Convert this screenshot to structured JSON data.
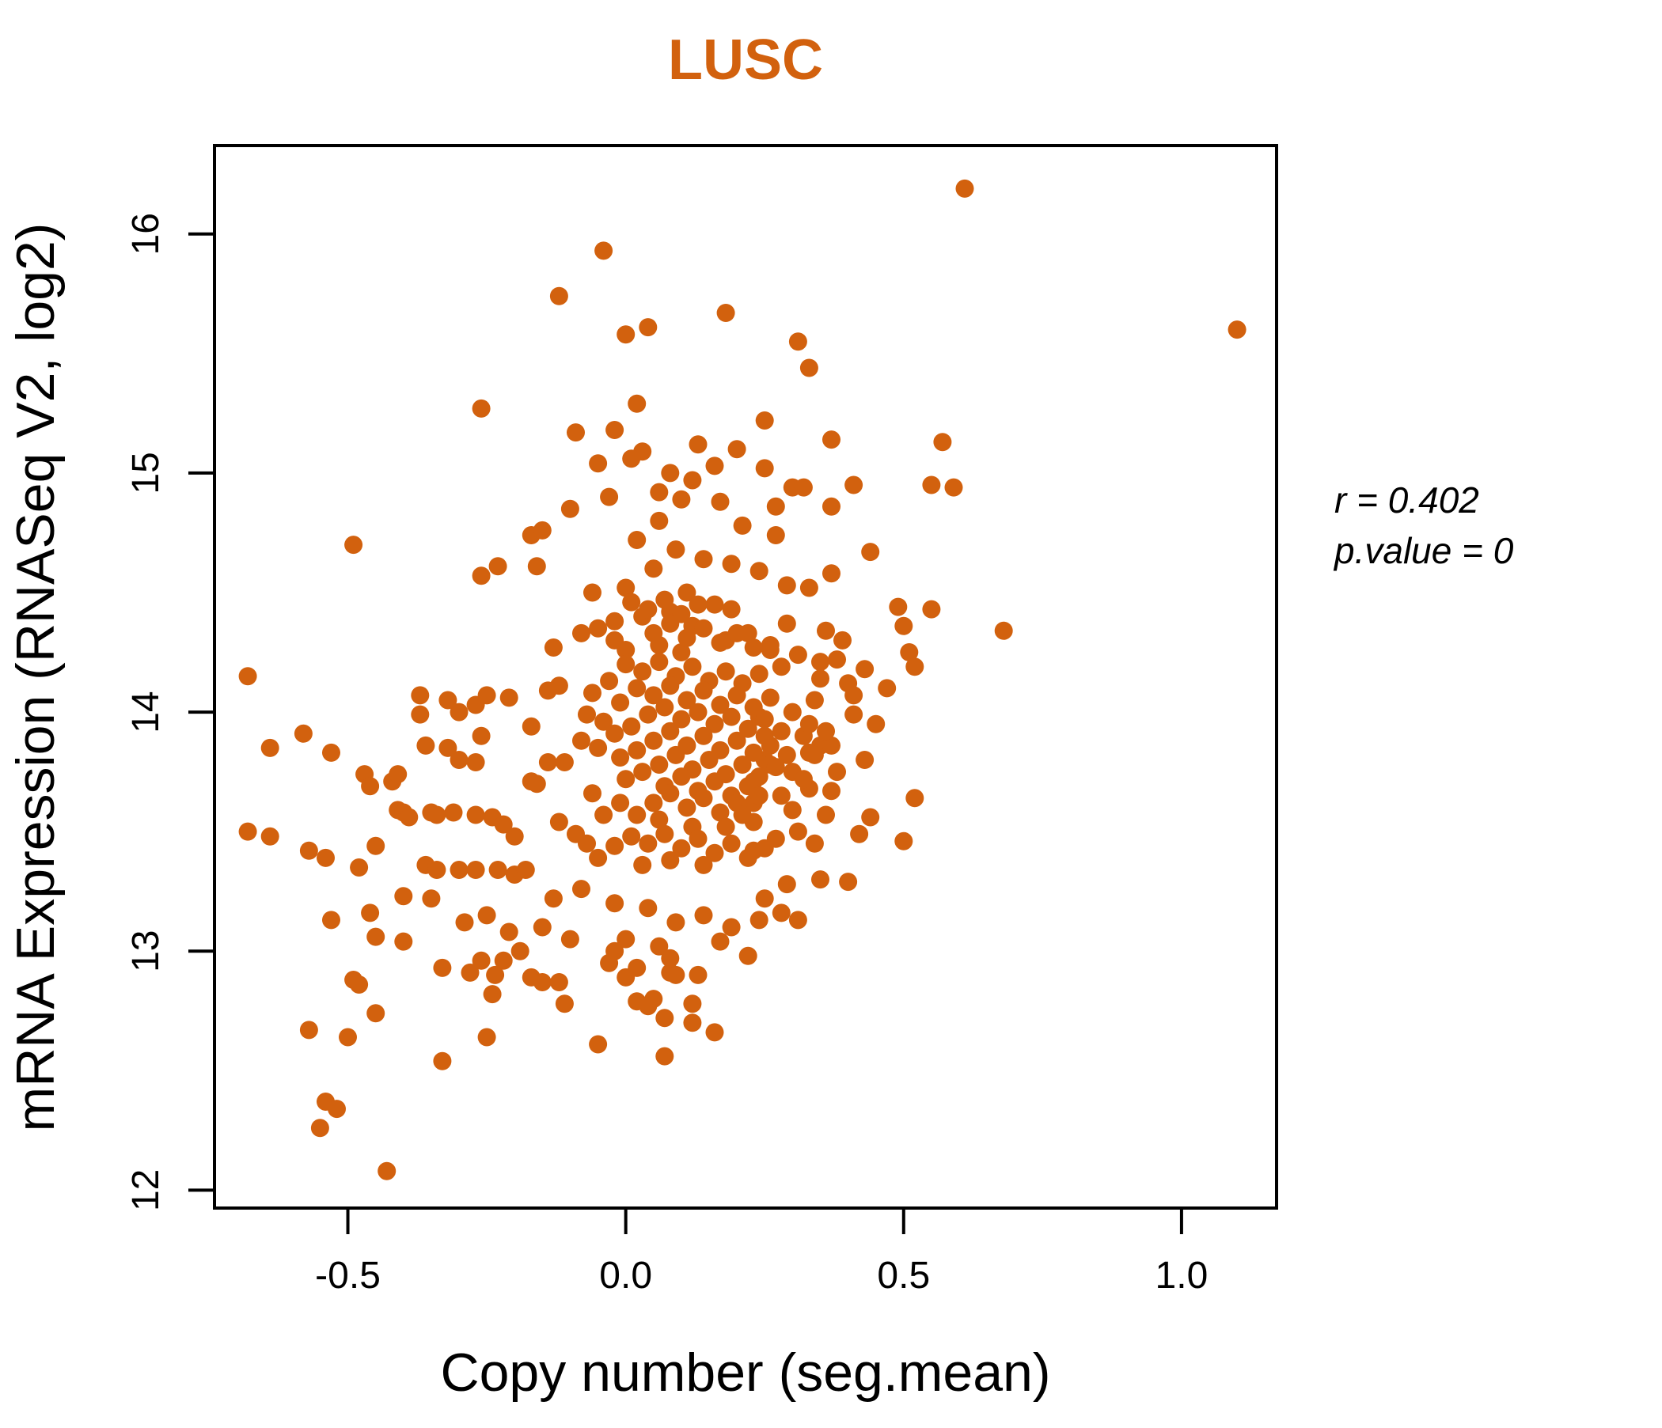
{
  "figure": {
    "title": "LUSC",
    "x_axis": {
      "label": "Copy number (seg.mean)",
      "tick_labels": [
        "-0.5",
        "0.0",
        "0.5",
        "1.0"
      ],
      "tick_values": [
        -0.5,
        0.0,
        0.5,
        1.0
      ]
    },
    "y_axis": {
      "label": "mRNA Expression (RNASeq V2, log2)",
      "tick_labels": [
        "12",
        "13",
        "14",
        "15",
        "16"
      ],
      "tick_values": [
        12,
        13,
        14,
        15,
        16
      ]
    },
    "annotation": {
      "r_text": "r = 0.402",
      "p_text": "p.value = 0"
    },
    "colors": {
      "accent": "#D2610E",
      "axis": "#000000",
      "background": "#ffffff"
    }
  },
  "chart_data": {
    "type": "scatter",
    "title": "LUSC",
    "xlabel": "Copy number (seg.mean)",
    "ylabel": "mRNA Expression (RNASeq V2, log2)",
    "xlim": [
      -0.74,
      1.171
    ],
    "ylim": [
      11.925,
      16.37
    ],
    "x_ticks": [
      -0.5,
      0.0,
      0.5,
      1.0
    ],
    "y_ticks": [
      12,
      13,
      14,
      15,
      16
    ],
    "grid": false,
    "legend": "none",
    "point_color": "#D2610E",
    "point_radius_px": 11.5,
    "stats": {
      "r": 0.402,
      "p_value": 0
    },
    "points": [
      [
        0.61,
        16.19
      ],
      [
        -0.04,
        15.93
      ],
      [
        -0.12,
        15.74
      ],
      [
        0.18,
        15.67
      ],
      [
        0.04,
        15.61
      ],
      [
        0.0,
        15.58
      ],
      [
        1.1,
        15.6
      ],
      [
        0.31,
        15.55
      ],
      [
        0.33,
        15.44
      ],
      [
        -0.26,
        15.27
      ],
      [
        0.02,
        15.29
      ],
      [
        -0.02,
        15.18
      ],
      [
        -0.09,
        15.17
      ],
      [
        0.37,
        15.14
      ],
      [
        0.57,
        15.13
      ],
      [
        0.13,
        15.12
      ],
      [
        0.2,
        15.1
      ],
      [
        0.03,
        15.09
      ],
      [
        0.01,
        15.06
      ],
      [
        -0.05,
        15.04
      ],
      [
        0.25,
        15.22
      ],
      [
        0.16,
        15.03
      ],
      [
        0.08,
        15.0
      ],
      [
        0.25,
        15.02
      ],
      [
        0.12,
        14.97
      ],
      [
        0.3,
        14.94
      ],
      [
        0.32,
        14.94
      ],
      [
        0.41,
        14.95
      ],
      [
        0.55,
        14.95
      ],
      [
        0.59,
        14.94
      ],
      [
        0.06,
        14.92
      ],
      [
        -0.03,
        14.9
      ],
      [
        0.1,
        14.89
      ],
      [
        0.17,
        14.88
      ],
      [
        0.27,
        14.86
      ],
      [
        0.37,
        14.86
      ],
      [
        -0.1,
        14.85
      ],
      [
        -0.49,
        14.7
      ],
      [
        -0.17,
        14.74
      ],
      [
        -0.15,
        14.76
      ],
      [
        -0.26,
        14.57
      ],
      [
        -0.23,
        14.61
      ],
      [
        -0.16,
        14.61
      ],
      [
        0.27,
        14.74
      ],
      [
        0.21,
        14.78
      ],
      [
        0.06,
        14.8
      ],
      [
        0.02,
        14.72
      ],
      [
        0.09,
        14.68
      ],
      [
        0.44,
        14.67
      ],
      [
        0.14,
        14.64
      ],
      [
        0.19,
        14.62
      ],
      [
        0.05,
        14.6
      ],
      [
        0.24,
        14.59
      ],
      [
        0.37,
        14.58
      ],
      [
        0.29,
        14.53
      ],
      [
        0.0,
        14.52
      ],
      [
        -0.06,
        14.5
      ],
      [
        0.11,
        14.5
      ],
      [
        0.33,
        14.52
      ],
      [
        0.49,
        14.44
      ],
      [
        0.5,
        14.36
      ],
      [
        0.51,
        14.25
      ],
      [
        0.68,
        14.34
      ],
      [
        0.36,
        14.34
      ],
      [
        0.29,
        14.37
      ],
      [
        0.39,
        14.3
      ],
      [
        0.16,
        14.45
      ],
      [
        0.08,
        14.42
      ],
      [
        0.03,
        14.4
      ],
      [
        -0.02,
        14.38
      ],
      [
        0.12,
        14.36
      ],
      [
        0.22,
        14.33
      ],
      [
        0.18,
        14.3
      ],
      [
        0.06,
        14.28
      ],
      [
        0.0,
        14.26
      ],
      [
        0.1,
        14.25
      ],
      [
        0.26,
        14.28
      ],
      [
        0.31,
        14.24
      ],
      [
        -0.08,
        14.33
      ],
      [
        -0.13,
        14.27
      ],
      [
        0.47,
        14.1
      ],
      [
        0.52,
        14.19
      ],
      [
        0.26,
        14.26
      ],
      [
        0.28,
        14.19
      ],
      [
        0.35,
        14.21
      ],
      [
        0.35,
        14.14
      ],
      [
        0.01,
        14.46
      ],
      [
        0.04,
        14.43
      ],
      [
        0.07,
        14.47
      ],
      [
        0.1,
        14.41
      ],
      [
        0.13,
        14.45
      ],
      [
        0.19,
        14.43
      ],
      [
        0.05,
        14.33
      ],
      [
        0.08,
        14.37
      ],
      [
        0.11,
        14.31
      ],
      [
        0.14,
        14.35
      ],
      [
        0.17,
        14.29
      ],
      [
        0.2,
        14.33
      ],
      [
        0.23,
        14.27
      ],
      [
        -0.02,
        14.3
      ],
      [
        -0.05,
        14.35
      ],
      [
        -0.68,
        14.15
      ],
      [
        -0.37,
        14.07
      ],
      [
        -0.37,
        13.99
      ],
      [
        -0.32,
        14.05
      ],
      [
        -0.3,
        14.0
      ],
      [
        -0.27,
        14.03
      ],
      [
        -0.25,
        14.07
      ],
      [
        -0.21,
        14.06
      ],
      [
        -0.14,
        14.09
      ],
      [
        -0.12,
        14.11
      ],
      [
        0.4,
        14.12
      ],
      [
        0.41,
        14.07
      ],
      [
        0.34,
        14.05
      ],
      [
        0.41,
        13.99
      ],
      [
        0.24,
        13.98
      ],
      [
        -0.64,
        13.85
      ],
      [
        -0.58,
        13.91
      ],
      [
        -0.53,
        13.83
      ],
      [
        -0.36,
        13.86
      ],
      [
        -0.32,
        13.85
      ],
      [
        -0.3,
        13.8
      ],
      [
        -0.27,
        13.79
      ],
      [
        -0.26,
        13.9
      ],
      [
        -0.17,
        13.94
      ],
      [
        -0.14,
        13.79
      ],
      [
        -0.11,
        13.79
      ],
      [
        0.32,
        13.9
      ],
      [
        0.35,
        13.86
      ],
      [
        0.37,
        13.86
      ],
      [
        0.33,
        13.83
      ],
      [
        0.34,
        13.82
      ],
      [
        0.25,
        13.9
      ],
      [
        0.26,
        13.86
      ],
      [
        0.25,
        13.8
      ],
      [
        0.26,
        13.78
      ],
      [
        -0.68,
        13.5
      ],
      [
        -0.64,
        13.48
      ],
      [
        -0.57,
        13.42
      ],
      [
        -0.54,
        13.39
      ],
      [
        -0.48,
        13.35
      ],
      [
        -0.47,
        13.74
      ],
      [
        -0.46,
        13.69
      ],
      [
        -0.42,
        13.71
      ],
      [
        -0.41,
        13.74
      ],
      [
        -0.41,
        13.59
      ],
      [
        -0.45,
        13.44
      ],
      [
        -0.4,
        13.58
      ],
      [
        -0.39,
        13.56
      ],
      [
        -0.35,
        13.58
      ],
      [
        -0.34,
        13.57
      ],
      [
        -0.31,
        13.58
      ],
      [
        -0.27,
        13.57
      ],
      [
        -0.24,
        13.56
      ],
      [
        -0.22,
        13.53
      ],
      [
        -0.2,
        13.48
      ],
      [
        -0.12,
        13.54
      ],
      [
        -0.09,
        13.49
      ],
      [
        -0.07,
        13.45
      ],
      [
        -0.36,
        13.36
      ],
      [
        -0.34,
        13.34
      ],
      [
        -0.3,
        13.34
      ],
      [
        -0.27,
        13.34
      ],
      [
        -0.23,
        13.34
      ],
      [
        -0.2,
        13.32
      ],
      [
        -0.18,
        13.34
      ],
      [
        -0.17,
        13.71
      ],
      [
        -0.16,
        13.7
      ],
      [
        0.5,
        13.46
      ],
      [
        0.44,
        13.56
      ],
      [
        0.42,
        13.49
      ],
      [
        0.4,
        13.29
      ],
      [
        0.33,
        13.68
      ],
      [
        0.37,
        13.67
      ],
      [
        0.3,
        13.59
      ],
      [
        0.23,
        13.71
      ],
      [
        0.23,
        13.62
      ],
      [
        0.23,
        13.54
      ],
      [
        0.23,
        13.42
      ],
      [
        0.52,
        13.64
      ],
      [
        -0.46,
        13.16
      ],
      [
        -0.53,
        13.13
      ],
      [
        -0.4,
        13.23
      ],
      [
        -0.4,
        13.04
      ],
      [
        -0.49,
        12.88
      ],
      [
        -0.45,
        13.06
      ],
      [
        -0.29,
        13.12
      ],
      [
        -0.25,
        13.15
      ],
      [
        -0.21,
        13.08
      ],
      [
        -0.15,
        13.1
      ],
      [
        -0.1,
        13.05
      ],
      [
        -0.33,
        12.93
      ],
      [
        -0.28,
        12.91
      ],
      [
        -0.22,
        12.96
      ],
      [
        -0.17,
        12.89
      ],
      [
        -0.35,
        13.22
      ],
      [
        -0.13,
        13.22
      ],
      [
        -0.08,
        13.26
      ],
      [
        -0.02,
        13.2
      ],
      [
        0.04,
        13.18
      ],
      [
        0.09,
        13.12
      ],
      [
        0.14,
        13.15
      ],
      [
        0.19,
        13.1
      ],
      [
        0.24,
        13.13
      ],
      [
        0.31,
        13.13
      ],
      [
        0.25,
        13.22
      ],
      [
        0.02,
        12.93
      ],
      [
        0.08,
        12.91
      ],
      [
        -0.03,
        12.95
      ],
      [
        0.13,
        12.9
      ],
      [
        0.06,
        13.02
      ],
      [
        0.0,
        13.05
      ],
      [
        0.17,
        13.04
      ],
      [
        0.22,
        12.98
      ],
      [
        0.12,
        12.78
      ],
      [
        0.05,
        12.8
      ],
      [
        0.16,
        12.66
      ],
      [
        0.28,
        13.16
      ],
      [
        -0.24,
        12.82
      ],
      [
        -0.235,
        12.9
      ],
      [
        -0.26,
        12.96
      ],
      [
        -0.19,
        13.0
      ],
      [
        -0.15,
        12.87
      ],
      [
        -0.12,
        12.87
      ],
      [
        -0.11,
        12.78
      ],
      [
        -0.02,
        13.0
      ],
      [
        0.0,
        12.89
      ],
      [
        0.02,
        12.79
      ],
      [
        0.04,
        12.77
      ],
      [
        0.07,
        12.72
      ],
      [
        0.12,
        12.7
      ],
      [
        0.09,
        12.9
      ],
      [
        0.08,
        12.97
      ],
      [
        -0.43,
        12.08
      ],
      [
        -0.55,
        12.26
      ],
      [
        -0.54,
        12.37
      ],
      [
        -0.52,
        12.34
      ],
      [
        -0.25,
        12.64
      ],
      [
        -0.33,
        12.54
      ],
      [
        -0.05,
        12.61
      ],
      [
        0.07,
        12.56
      ],
      [
        -0.45,
        12.74
      ],
      [
        -0.48,
        12.86
      ],
      [
        -0.5,
        12.64
      ],
      [
        -0.57,
        12.67
      ],
      [
        0.0,
        14.2
      ],
      [
        0.03,
        14.17
      ],
      [
        0.06,
        14.21
      ],
      [
        0.09,
        14.15
      ],
      [
        0.12,
        14.19
      ],
      [
        0.15,
        14.13
      ],
      [
        0.18,
        14.17
      ],
      [
        0.21,
        14.12
      ],
      [
        0.24,
        14.16
      ],
      [
        0.02,
        14.1
      ],
      [
        0.05,
        14.07
      ],
      [
        0.08,
        14.11
      ],
      [
        0.11,
        14.05
      ],
      [
        0.14,
        14.09
      ],
      [
        0.17,
        14.03
      ],
      [
        0.2,
        14.07
      ],
      [
        0.23,
        14.02
      ],
      [
        0.26,
        14.06
      ],
      [
        -0.03,
        14.13
      ],
      [
        -0.06,
        14.08
      ],
      [
        -0.01,
        14.04
      ],
      [
        0.04,
        13.99
      ],
      [
        0.07,
        14.02
      ],
      [
        0.1,
        13.97
      ],
      [
        0.13,
        14.0
      ],
      [
        0.16,
        13.95
      ],
      [
        0.19,
        13.98
      ],
      [
        0.22,
        13.93
      ],
      [
        0.25,
        13.97
      ],
      [
        0.28,
        13.92
      ],
      [
        -0.04,
        13.96
      ],
      [
        -0.07,
        13.99
      ],
      [
        -0.02,
        13.91
      ],
      [
        0.01,
        13.94
      ],
      [
        0.05,
        13.88
      ],
      [
        0.08,
        13.92
      ],
      [
        0.11,
        13.86
      ],
      [
        0.14,
        13.9
      ],
      [
        0.17,
        13.84
      ],
      [
        0.2,
        13.88
      ],
      [
        0.23,
        13.83
      ],
      [
        0.29,
        13.82
      ],
      [
        -0.05,
        13.85
      ],
      [
        -0.08,
        13.88
      ],
      [
        -0.01,
        13.81
      ],
      [
        0.02,
        13.84
      ],
      [
        0.06,
        13.78
      ],
      [
        0.09,
        13.82
      ],
      [
        0.12,
        13.76
      ],
      [
        0.15,
        13.8
      ],
      [
        0.18,
        13.74
      ],
      [
        0.21,
        13.78
      ],
      [
        0.24,
        13.73
      ],
      [
        0.27,
        13.77
      ],
      [
        0.0,
        13.72
      ],
      [
        0.03,
        13.75
      ],
      [
        0.07,
        13.69
      ],
      [
        0.1,
        13.73
      ],
      [
        0.13,
        13.67
      ],
      [
        0.16,
        13.71
      ],
      [
        0.19,
        13.65
      ],
      [
        0.22,
        13.69
      ],
      [
        0.05,
        13.62
      ],
      [
        0.08,
        13.66
      ],
      [
        0.11,
        13.6
      ],
      [
        0.14,
        13.64
      ],
      [
        0.17,
        13.58
      ],
      [
        0.2,
        13.62
      ],
      [
        0.02,
        13.57
      ],
      [
        -0.01,
        13.62
      ],
      [
        -0.04,
        13.57
      ],
      [
        -0.06,
        13.66
      ],
      [
        0.06,
        13.55
      ],
      [
        0.12,
        13.52
      ],
      [
        0.01,
        13.48
      ],
      [
        0.04,
        13.45
      ],
      [
        0.07,
        13.49
      ],
      [
        0.1,
        13.43
      ],
      [
        0.13,
        13.47
      ],
      [
        0.16,
        13.41
      ],
      [
        0.19,
        13.45
      ],
      [
        0.22,
        13.39
      ],
      [
        0.25,
        13.43
      ],
      [
        -0.02,
        13.44
      ],
      [
        -0.05,
        13.39
      ],
      [
        0.03,
        13.36
      ],
      [
        0.08,
        13.38
      ],
      [
        0.14,
        13.36
      ],
      [
        0.18,
        13.52
      ],
      [
        0.3,
        14.0
      ],
      [
        0.33,
        13.95
      ],
      [
        0.36,
        13.92
      ],
      [
        0.3,
        13.75
      ],
      [
        0.32,
        13.72
      ],
      [
        0.28,
        13.65
      ],
      [
        0.31,
        13.5
      ],
      [
        0.27,
        13.47
      ],
      [
        0.34,
        13.45
      ],
      [
        0.36,
        13.57
      ],
      [
        0.38,
        13.75
      ],
      [
        0.43,
        13.8
      ],
      [
        0.45,
        13.95
      ],
      [
        0.43,
        14.18
      ],
      [
        0.38,
        14.22
      ],
      [
        0.55,
        14.43
      ],
      [
        0.21,
        13.57
      ],
      [
        0.24,
        13.65
      ],
      [
        0.29,
        13.28
      ],
      [
        0.35,
        13.3
      ]
    ]
  }
}
